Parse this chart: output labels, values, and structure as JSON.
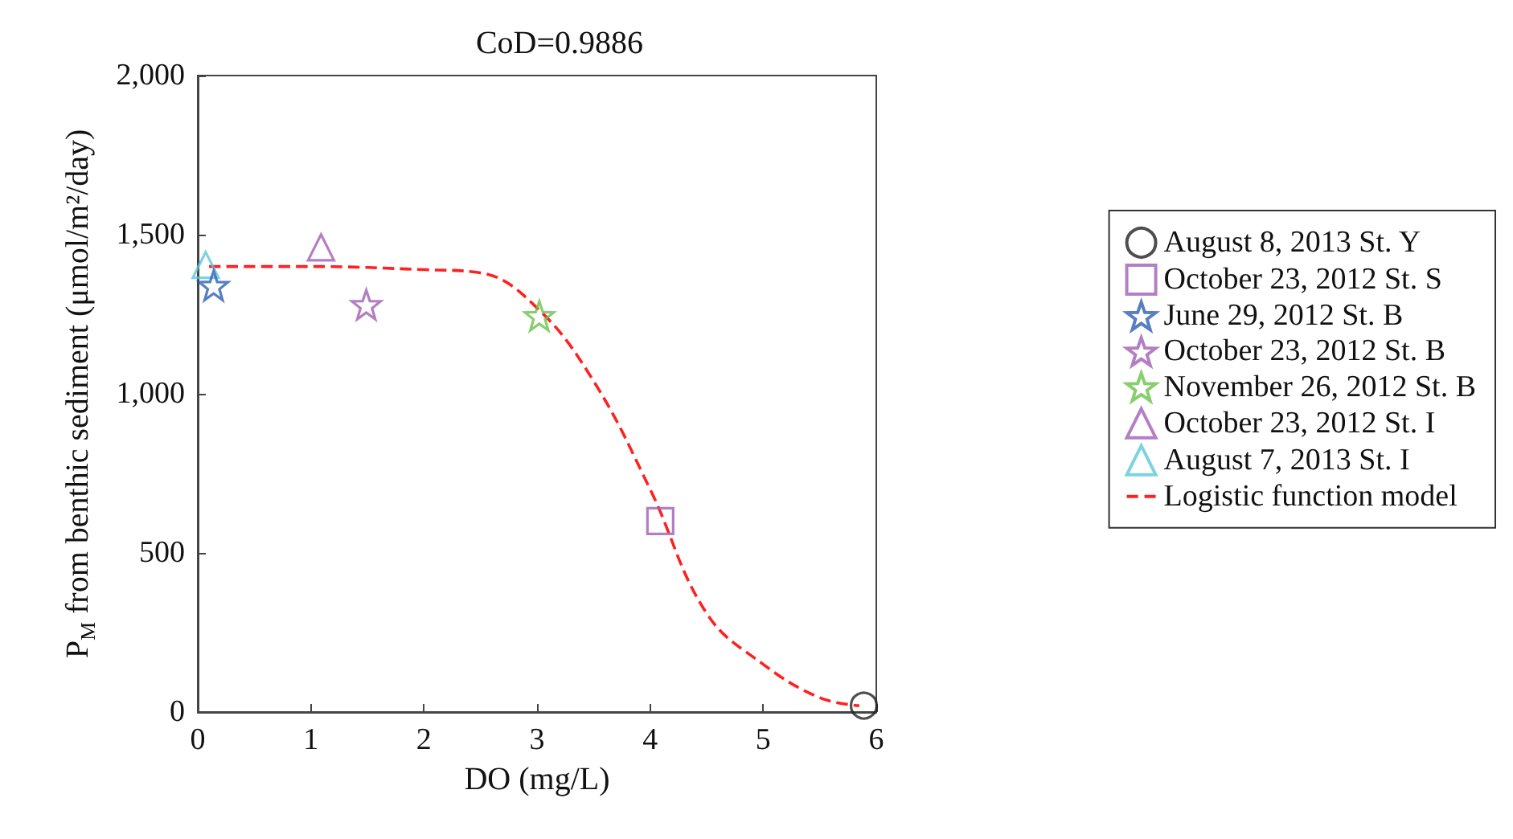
{
  "chart_data": {
    "type": "scatter",
    "title": "CoD=0.9886",
    "xlabel": "DO (mg/L)",
    "ylabel": "P$_{M}$ from benthic sediment (μmol/m²/day)",
    "xlim": [
      0,
      6
    ],
    "xticks": [
      0,
      1,
      2,
      3,
      4,
      5,
      6
    ],
    "ylim": [
      0,
      2000
    ],
    "yticks": [
      0,
      500,
      {
        "value": 1000,
        "label": "1,000"
      },
      {
        "value": 1500,
        "label": "1,500"
      },
      {
        "value": 2000,
        "label": "2,000"
      }
    ],
    "grid": false,
    "legend": "right",
    "series": [
      {
        "name": "August 8, 2013 St. Y",
        "color": "#222222",
        "marker": "circle",
        "x": [
          5.89
        ],
        "values": [
          20
        ]
      },
      {
        "name": "October 23, 2012 St. S",
        "color": "#a05fb5",
        "marker": "square",
        "x": [
          4.09
        ],
        "values": [
          600
        ]
      },
      {
        "name": "June 29, 2012 St. B",
        "color": "#2d5fb4",
        "marker": "star",
        "x": [
          0.14
        ],
        "values": [
          1340
        ]
      },
      {
        "name": "October 23, 2012 St. B",
        "color": "#a05fb5",
        "marker": "star",
        "x": [
          1.49
        ],
        "values": [
          1280
        ]
      },
      {
        "name": "November 26, 2012 St. B",
        "color": "#6cc24a",
        "marker": "star",
        "x": [
          3.02
        ],
        "values": [
          1245
        ]
      },
      {
        "name": "October 23, 2012 St. I",
        "color": "#a05fb5",
        "marker": "triangle",
        "x": [
          1.09
        ],
        "values": [
          1460
        ]
      },
      {
        "name": "August 7, 2013 St. I",
        "color": "#5bc8d8",
        "marker": "triangle",
        "x": [
          0.07
        ],
        "values": [
          1405
        ]
      },
      {
        "name": "Logistic function model",
        "type": "line",
        "color": "#ff2020",
        "marker": "none",
        "line_style": "dashed",
        "x": [
          0.1,
          1,
          2,
          2.5,
          3,
          3.5,
          4,
          4.5,
          5,
          5.5,
          5.85
        ],
        "values": [
          1400,
          1400,
          1390,
          1380,
          1270,
          1040,
          700,
          310,
          150,
          45,
          20
        ]
      }
    ]
  }
}
